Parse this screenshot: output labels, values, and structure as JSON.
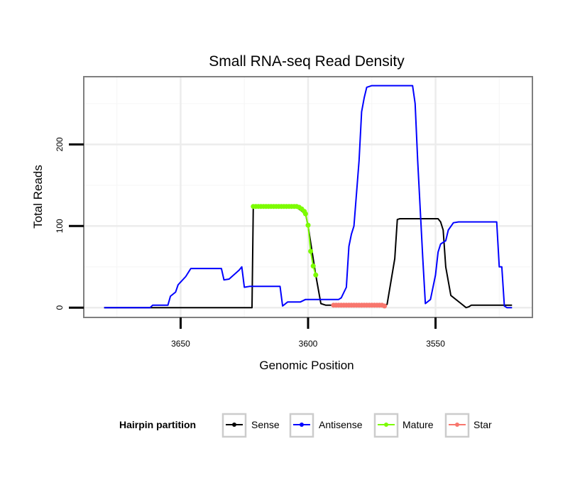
{
  "chart_data": {
    "type": "line",
    "title": "Small RNA-seq Read Density",
    "xlabel": "Genomic Position",
    "ylabel": "Total Reads",
    "xlim": [
      3688,
      3512
    ],
    "ylim": [
      -12,
      283
    ],
    "x_reversed": true,
    "grid": true,
    "xticks": [
      3650,
      3600,
      3550
    ],
    "xtick_labels": [
      "3650",
      "3600",
      "3550"
    ],
    "yticks": [
      0,
      100,
      200
    ],
    "ytick_labels": [
      "0",
      "100",
      "200"
    ],
    "legend": {
      "title": "Hairpin partition",
      "placement": "bottom",
      "entries": [
        {
          "label": "Sense",
          "color": "#000000"
        },
        {
          "label": "Antisense",
          "color": "#0000ff"
        },
        {
          "label": "Mature",
          "color": "#7cfc00"
        },
        {
          "label": "Star",
          "color": "#f8766d"
        }
      ]
    },
    "series": [
      {
        "name": "Sense",
        "color": "#000000",
        "points": [
          [
            3680,
            0
          ],
          [
            3622,
            0
          ],
          [
            3621.5,
            124
          ],
          [
            3605,
            124
          ],
          [
            3601,
            115
          ],
          [
            3600,
            100
          ],
          [
            3598,
            60
          ],
          [
            3597,
            40
          ],
          [
            3595,
            5
          ],
          [
            3593,
            3
          ],
          [
            3570,
            3
          ],
          [
            3569,
            4
          ],
          [
            3566,
            60
          ],
          [
            3565,
            108
          ],
          [
            3564,
            109
          ],
          [
            3549,
            109
          ],
          [
            3548,
            105
          ],
          [
            3547,
            95
          ],
          [
            3546,
            50
          ],
          [
            3544,
            15
          ],
          [
            3540,
            5
          ],
          [
            3538,
            0
          ],
          [
            3537,
            1
          ],
          [
            3536,
            3
          ],
          [
            3520,
            3
          ]
        ]
      },
      {
        "name": "Antisense",
        "color": "#0000ff",
        "points": [
          [
            3680,
            0
          ],
          [
            3662,
            0
          ],
          [
            3661,
            3
          ],
          [
            3655,
            3
          ],
          [
            3654,
            14
          ],
          [
            3652,
            19
          ],
          [
            3651,
            28
          ],
          [
            3648,
            38
          ],
          [
            3646,
            48
          ],
          [
            3634,
            48
          ],
          [
            3633,
            34
          ],
          [
            3631,
            35
          ],
          [
            3627,
            46
          ],
          [
            3626,
            50
          ],
          [
            3625,
            25
          ],
          [
            3623,
            26
          ],
          [
            3611,
            26
          ],
          [
            3610,
            2
          ],
          [
            3608,
            7
          ],
          [
            3603,
            7
          ],
          [
            3601,
            10
          ],
          [
            3588,
            10
          ],
          [
            3587,
            12
          ],
          [
            3585,
            25
          ],
          [
            3584,
            75
          ],
          [
            3583,
            90
          ],
          [
            3582,
            100
          ],
          [
            3580,
            180
          ],
          [
            3579,
            240
          ],
          [
            3578,
            257
          ],
          [
            3577,
            270
          ],
          [
            3575,
            272
          ],
          [
            3559,
            272
          ],
          [
            3558,
            250
          ],
          [
            3557,
            180
          ],
          [
            3555,
            60
          ],
          [
            3554,
            5
          ],
          [
            3552,
            10
          ],
          [
            3550,
            40
          ],
          [
            3549,
            68
          ],
          [
            3548,
            78
          ],
          [
            3546,
            82
          ],
          [
            3545,
            95
          ],
          [
            3543,
            104
          ],
          [
            3541,
            105
          ],
          [
            3526,
            105
          ],
          [
            3525,
            50
          ],
          [
            3524,
            50
          ],
          [
            3523,
            2
          ],
          [
            3522,
            0
          ],
          [
            3520,
            0
          ]
        ]
      },
      {
        "name": "Mature",
        "color": "#7cfc00",
        "points": [
          [
            3621.5,
            124
          ],
          [
            3620.5,
            124
          ],
          [
            3619.5,
            124
          ],
          [
            3618.5,
            124
          ],
          [
            3617.5,
            124
          ],
          [
            3616.5,
            124
          ],
          [
            3615.5,
            124
          ],
          [
            3614.5,
            124
          ],
          [
            3613.5,
            124
          ],
          [
            3612.5,
            124
          ],
          [
            3611.5,
            124
          ],
          [
            3610.5,
            124
          ],
          [
            3609.5,
            124
          ],
          [
            3608.5,
            124
          ],
          [
            3607.5,
            124
          ],
          [
            3606.5,
            124
          ],
          [
            3605.5,
            124
          ],
          [
            3604.5,
            124
          ],
          [
            3603.5,
            123
          ],
          [
            3602.5,
            121
          ],
          [
            3601.5,
            118
          ],
          [
            3601,
            115
          ],
          [
            3600,
            101
          ],
          [
            3599,
            69
          ],
          [
            3598,
            51
          ],
          [
            3597,
            40
          ]
        ]
      },
      {
        "name": "Star",
        "color": "#f8766d",
        "points": [
          [
            3590,
            3
          ],
          [
            3589,
            3
          ],
          [
            3588,
            3
          ],
          [
            3587,
            3
          ],
          [
            3586,
            3
          ],
          [
            3585,
            3
          ],
          [
            3584,
            3
          ],
          [
            3583,
            3
          ],
          [
            3582,
            3
          ],
          [
            3581,
            3
          ],
          [
            3580,
            3
          ],
          [
            3579,
            3
          ],
          [
            3578,
            3
          ],
          [
            3577,
            3
          ],
          [
            3576,
            3
          ],
          [
            3575,
            3
          ],
          [
            3574,
            3
          ],
          [
            3573,
            3
          ],
          [
            3572,
            3
          ],
          [
            3571,
            3
          ],
          [
            3570,
            2
          ]
        ]
      }
    ]
  }
}
